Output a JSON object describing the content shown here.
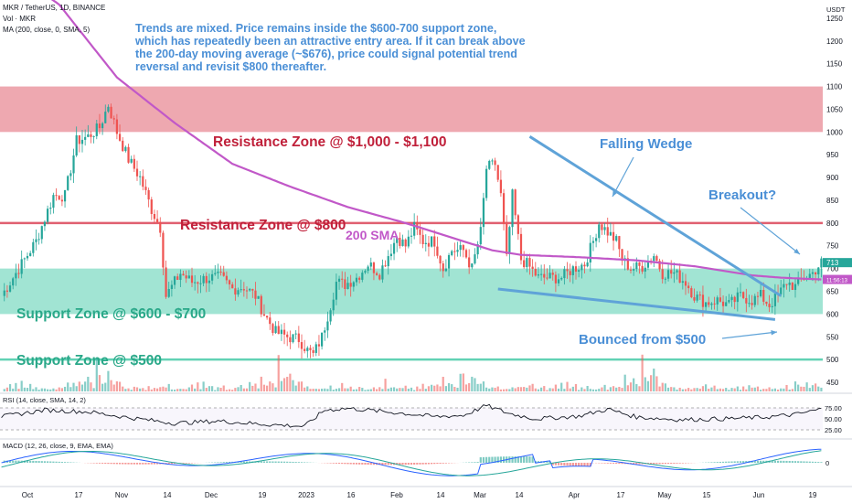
{
  "header": {
    "symbol": "MKR / TetherUS, 1D, BINANCE",
    "volume": "Vol · MKR",
    "ma": "MA (200, close, 0, SMA, 5)"
  },
  "annotation_text": "Trends are mixed. Price remains inside the $600-700 support zone, which has repeatedly been an attractive entry area. If it can break above the 200-day moving average (~$676), price could signal potential trend reversal and revisit $800 thereafter.",
  "colors": {
    "up": "#26a69a",
    "down": "#ef5350",
    "sma": "#c158c8",
    "support": "#62d2b5",
    "resistance": "#e06070",
    "annotation": "#4a8fd6",
    "support_text": "#2aa889",
    "resistance_text": "#c0203a"
  },
  "chart_data": {
    "type": "candlestick",
    "title": "MKR / TetherUS, 1D, BINANCE",
    "currency": "USDT",
    "y_ticks": [
      450,
      500,
      550,
      600,
      650,
      700,
      750,
      800,
      850,
      900,
      950,
      1000,
      1050,
      1100,
      1150,
      1200,
      1250
    ],
    "ylim": [
      430,
      1290
    ],
    "x_labels": [
      "Oct",
      "17",
      "Nov",
      "14",
      "Dec",
      "19",
      "2023",
      "16",
      "Feb",
      "14",
      "Mar",
      "14",
      "Apr",
      "17",
      "May",
      "15",
      "Jun",
      "19"
    ],
    "last_price": "713",
    "last_price_sub": "11:56:13",
    "sma_price": "676",
    "price_path": [
      [
        0,
        640
      ],
      [
        6,
        700
      ],
      [
        12,
        760
      ],
      [
        18,
        860
      ],
      [
        22,
        860
      ],
      [
        26,
        980
      ],
      [
        30,
        990
      ],
      [
        34,
        1010
      ],
      [
        37,
        1060
      ],
      [
        40,
        1000
      ],
      [
        44,
        940
      ],
      [
        48,
        900
      ],
      [
        52,
        830
      ],
      [
        55,
        790
      ],
      [
        57,
        640
      ],
      [
        62,
        690
      ],
      [
        66,
        670
      ],
      [
        72,
        680
      ],
      [
        76,
        680
      ],
      [
        80,
        655
      ],
      [
        84,
        660
      ],
      [
        88,
        640
      ],
      [
        91,
        600
      ],
      [
        95,
        560
      ],
      [
        99,
        550
      ],
      [
        103,
        545
      ],
      [
        106,
        520
      ],
      [
        108,
        510
      ],
      [
        111,
        550
      ],
      [
        114,
        620
      ],
      [
        116,
        670
      ],
      [
        119,
        665
      ],
      [
        123,
        680
      ],
      [
        127,
        710
      ],
      [
        131,
        690
      ],
      [
        134,
        730
      ],
      [
        137,
        770
      ],
      [
        140,
        750
      ],
      [
        143,
        790
      ],
      [
        146,
        760
      ],
      [
        150,
        760
      ],
      [
        153,
        700
      ],
      [
        156,
        740
      ],
      [
        160,
        740
      ],
      [
        163,
        700
      ],
      [
        166,
        780
      ],
      [
        168,
        920
      ],
      [
        171,
        930
      ],
      [
        173,
        860
      ],
      [
        175,
        720
      ],
      [
        177,
        860
      ],
      [
        180,
        720
      ],
      [
        182,
        710
      ],
      [
        186,
        680
      ],
      [
        190,
        680
      ],
      [
        194,
        680
      ],
      [
        198,
        700
      ],
      [
        202,
        710
      ],
      [
        205,
        760
      ],
      [
        207,
        800
      ],
      [
        210,
        780
      ],
      [
        213,
        760
      ],
      [
        215,
        720
      ],
      [
        218,
        700
      ],
      [
        222,
        705
      ],
      [
        226,
        730
      ],
      [
        229,
        690
      ],
      [
        233,
        690
      ],
      [
        237,
        670
      ],
      [
        240,
        640
      ],
      [
        244,
        625
      ],
      [
        248,
        630
      ],
      [
        252,
        620
      ],
      [
        256,
        640
      ],
      [
        260,
        630
      ],
      [
        263,
        640
      ],
      [
        266,
        620
      ],
      [
        269,
        640
      ],
      [
        272,
        670
      ],
      [
        275,
        660
      ],
      [
        278,
        680
      ],
      [
        281,
        690
      ],
      [
        284,
        713
      ]
    ],
    "sma200": [
      [
        0,
        1370
      ],
      [
        20,
        1280
      ],
      [
        40,
        1120
      ],
      [
        60,
        1020
      ],
      [
        80,
        930
      ],
      [
        100,
        880
      ],
      [
        120,
        835
      ],
      [
        140,
        800
      ],
      [
        160,
        760
      ],
      [
        170,
        740
      ],
      [
        180,
        730
      ],
      [
        200,
        725
      ],
      [
        220,
        718
      ],
      [
        240,
        705
      ],
      [
        260,
        685
      ],
      [
        270,
        680
      ],
      [
        284,
        676
      ]
    ],
    "volume_levels": [
      0.04,
      0.05,
      0.06,
      0.1,
      0.05,
      0.12,
      0.06,
      0.18,
      0.05,
      0.07,
      0.1,
      0.04,
      0.06,
      0.05,
      0.09,
      0.04,
      0.05,
      0.03,
      0.08,
      0.06,
      0.1,
      0.05,
      0.07,
      0.14,
      0.09,
      0.12,
      0.08,
      0.22,
      0.1,
      0.15,
      0.2,
      0.12,
      0.09,
      0.5,
      0.25,
      0.18,
      0.22,
      0.35,
      0.2,
      0.12,
      0.14,
      0.18,
      0.1,
      0.07,
      0.06,
      0.05,
      0.08,
      0.06,
      0.04,
      0.05,
      0.04,
      0.1,
      0.05,
      0.06,
      0.08,
      0.12,
      0.07,
      0.09,
      0.1,
      0.05,
      0.04,
      0.06,
      0.08
    ],
    "rsi": [
      [
        0,
        55
      ],
      [
        15,
        70
      ],
      [
        30,
        66
      ],
      [
        45,
        52
      ],
      [
        60,
        40
      ],
      [
        75,
        45
      ],
      [
        90,
        38
      ],
      [
        105,
        33
      ],
      [
        112,
        70
      ],
      [
        120,
        74
      ],
      [
        130,
        68
      ],
      [
        140,
        62
      ],
      [
        150,
        55
      ],
      [
        160,
        58
      ],
      [
        168,
        80
      ],
      [
        176,
        62
      ],
      [
        185,
        50
      ],
      [
        200,
        56
      ],
      [
        210,
        72
      ],
      [
        220,
        54
      ],
      [
        235,
        48
      ],
      [
        250,
        50
      ],
      [
        265,
        54
      ],
      [
        275,
        60
      ],
      [
        284,
        72
      ]
    ],
    "rsi_ticks": [
      75,
      50,
      25
    ],
    "macd_ticks": [
      0
    ],
    "zones": [
      {
        "label": "Resistance Zone @ $1,000 - $1,100",
        "low": 1000,
        "high": 1100,
        "kind": "resistance"
      },
      {
        "label": "Resistance Zone @ $800",
        "level": 800,
        "kind": "resistance"
      },
      {
        "label": "Support Zone @ $600 - $700",
        "low": 600,
        "high": 700,
        "kind": "support"
      },
      {
        "label": "Support Zone @ $500",
        "level": 500,
        "kind": "support"
      }
    ],
    "labels": {
      "sma": "200 SMA",
      "wedge": "Falling Wedge",
      "breakout": "Breakout?",
      "bounce": "Bounced from $500"
    },
    "indicators": {
      "rsi": "RSI (14, close, SMA, 14, 2)",
      "macd": "MACD (12, 26, close, 9, EMA, EMA)"
    }
  }
}
